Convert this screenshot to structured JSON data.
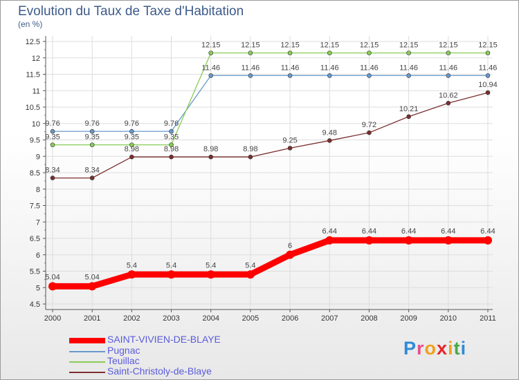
{
  "title": "Evolution du Taux de Taxe d'Habitation",
  "subtitle": "(en %)",
  "chart_data": {
    "type": "line",
    "x": [
      "2000",
      "2001",
      "2002",
      "2003",
      "2004",
      "2005",
      "2006",
      "2007",
      "2008",
      "2009",
      "2010",
      "2011"
    ],
    "ylim": [
      4.5,
      12.5
    ],
    "yticks": [
      "4.5",
      "5",
      "5.5",
      "6",
      "6.5",
      "7",
      "7.5",
      "8",
      "8.5",
      "9",
      "9.5",
      "10",
      "10.5",
      "11",
      "11.5",
      "12",
      "12.5"
    ],
    "series": [
      {
        "name": "SAINT-VIVIEN-DE-BLAYE",
        "color": "#ff0000",
        "values": [
          5.04,
          5.04,
          5.4,
          5.4,
          5.4,
          5.4,
          6,
          6.44,
          6.44,
          6.44,
          6.44,
          6.44
        ],
        "labels": [
          "5.04",
          "5.04",
          "5.4",
          "5.4",
          "5.4",
          "5.4",
          "6",
          "6.44",
          "6.44",
          "6.44",
          "6.44",
          "6.44"
        ]
      },
      {
        "name": "Pugnac",
        "color": "#6699cc",
        "values": [
          9.76,
          9.76,
          9.76,
          9.76,
          11.46,
          11.46,
          11.46,
          11.46,
          11.46,
          11.46,
          11.46,
          11.46
        ],
        "labels": [
          "9.76",
          "9.76",
          "9.76",
          "9.76",
          "11.46",
          "11.46",
          "11.46",
          "11.46",
          "11.46",
          "11.46",
          "11.46",
          "11.46"
        ]
      },
      {
        "name": "Teuillac",
        "color": "#88cc55",
        "values": [
          9.35,
          9.35,
          9.35,
          9.35,
          12.15,
          12.15,
          12.15,
          12.15,
          12.15,
          12.15,
          12.15,
          12.15
        ],
        "labels": [
          "9.35",
          "9.35",
          "9.35",
          "9.35",
          "12.15",
          "12.15",
          "12.15",
          "12.15",
          "12.15",
          "12.15",
          "12.15",
          "12.15"
        ]
      },
      {
        "name": "Saint-Christoly-de-Blaye",
        "color": "#7a2e2e",
        "values": [
          8.34,
          8.34,
          8.98,
          8.98,
          8.98,
          8.98,
          9.25,
          9.48,
          9.72,
          10.21,
          10.62,
          10.94
        ],
        "labels": [
          "8.34",
          "8.34",
          "8.98",
          "8.98",
          "8.98",
          "8.98",
          "9.25",
          "9.48",
          "9.72",
          "10.21",
          "10.62",
          "10.94"
        ]
      }
    ]
  },
  "legend": [
    {
      "label": "SAINT-VIVIEN-DE-BLAYE",
      "color": "#ff0000"
    },
    {
      "label": "Pugnac",
      "color": "#6699cc"
    },
    {
      "label": "Teuillac",
      "color": "#88cc55"
    },
    {
      "label": "Saint-Christoly-de-Blaye",
      "color": "#7a2e2e"
    }
  ],
  "logo": {
    "letters": [
      "P",
      "r",
      "o",
      "x",
      "i",
      "t",
      "i"
    ],
    "colors": [
      "#2e8bd8",
      "#e84d8a",
      "#f0a020",
      "#e8242a",
      "#f0a020",
      "#4aa84a",
      "#2e8bd8"
    ]
  }
}
